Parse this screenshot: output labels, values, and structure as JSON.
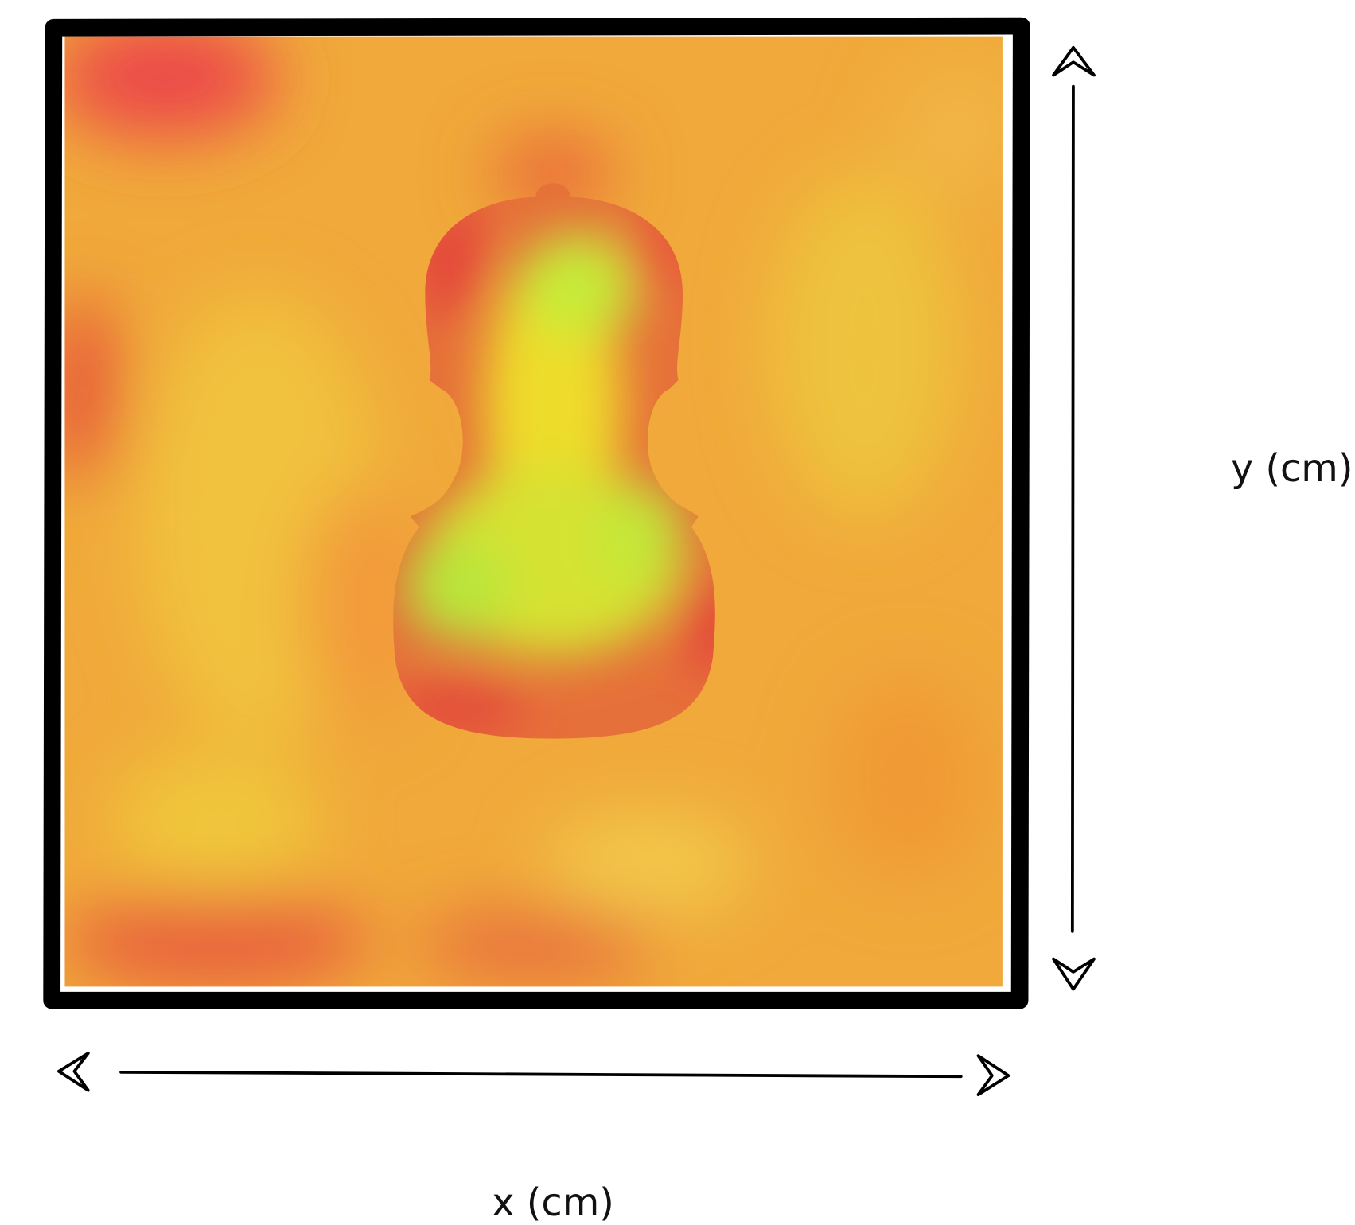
{
  "labels": {
    "x": "x (cm)",
    "y": "y (cm)"
  }
}
